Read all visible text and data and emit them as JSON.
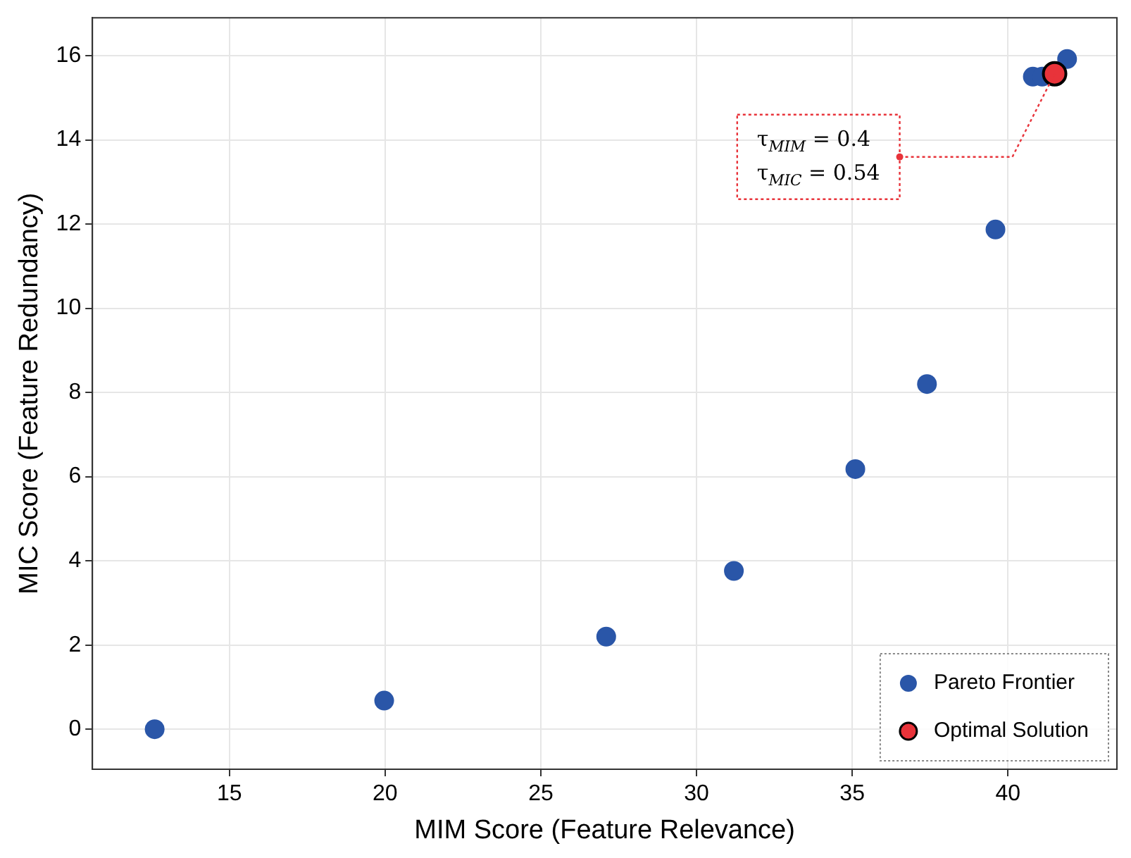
{
  "chart_data": {
    "type": "scatter",
    "xlabel": "MIM Score (Feature Relevance)",
    "ylabel": "MIC Score (Feature Redundancy)",
    "xlim": [
      10.6,
      43.5
    ],
    "xticks": [
      15,
      20,
      25,
      30,
      35,
      40
    ],
    "ylim": [
      -0.95,
      16.9
    ],
    "yticks": [
      0,
      2,
      4,
      6,
      8,
      10,
      12,
      14,
      16
    ],
    "grid": true,
    "legend": "bottom right",
    "marker": "circle",
    "series": [
      {
        "name": "Pareto Frontier",
        "color": "#2a56a8",
        "x": [
          12.6,
          19.97,
          27.1,
          31.2,
          35.1,
          37.4,
          39.6,
          40.8,
          41.1,
          41.9
        ],
        "values": [
          0,
          0.68,
          2.2,
          3.76,
          6.18,
          8.2,
          11.87,
          15.5,
          15.5,
          15.92
        ]
      },
      {
        "name": "Optimal Solution",
        "color": "#e8333a",
        "x": [
          41.5
        ],
        "values": [
          15.57
        ]
      }
    ],
    "annotations": [
      "τ$_{MIM}$ = 0.4",
      "τ$_{MIC}$ = 0.54"
    ]
  }
}
